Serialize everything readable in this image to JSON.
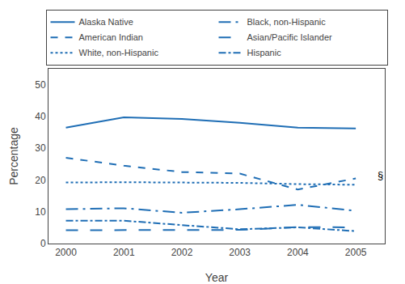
{
  "chart_data": {
    "type": "line",
    "x": [
      2000,
      2001,
      2002,
      2003,
      2004,
      2005
    ],
    "color": "#1f6eb5",
    "series": [
      {
        "name": "Alaska Native",
        "values": [
          36.5,
          39.7,
          39.2,
          38.0,
          36.5,
          36.2
        ],
        "line_style": "solid"
      },
      {
        "name": "American Indian",
        "values": [
          27.0,
          24.5,
          22.5,
          22.0,
          17.0,
          20.5
        ],
        "line_style": "dash"
      },
      {
        "name": "White, non-Hispanic",
        "values": [
          19.2,
          19.3,
          19.2,
          19.1,
          18.7,
          18.5
        ],
        "line_style": "dot"
      },
      {
        "name": "Black, non-Hispanic",
        "values": [
          10.8,
          11.1,
          9.7,
          10.8,
          12.2,
          10.3
        ],
        "line_style": "longdashdot"
      },
      {
        "name": "Asian/Pacific Islander",
        "values": [
          4.2,
          4.2,
          4.3,
          4.3,
          5.2,
          5.1
        ],
        "line_style": "longdash"
      },
      {
        "name": "Hispanic",
        "values": [
          7.2,
          7.2,
          5.8,
          4.5,
          5.1,
          3.9
        ],
        "line_style": "dashdot"
      }
    ],
    "xlabel": "Year",
    "ylabel": "Percentage",
    "xlim": [
      1999.7,
      2005.5
    ],
    "xticks": [
      2000,
      2001,
      2002,
      2003,
      2004,
      2005
    ],
    "ylim": [
      0,
      55
    ],
    "yticks": [
      0,
      10,
      20,
      30,
      40,
      50
    ],
    "annotations": [
      {
        "text": "§",
        "x": 2005.35,
        "y": 21.5
      }
    ],
    "legend": "top",
    "grid": false
  }
}
